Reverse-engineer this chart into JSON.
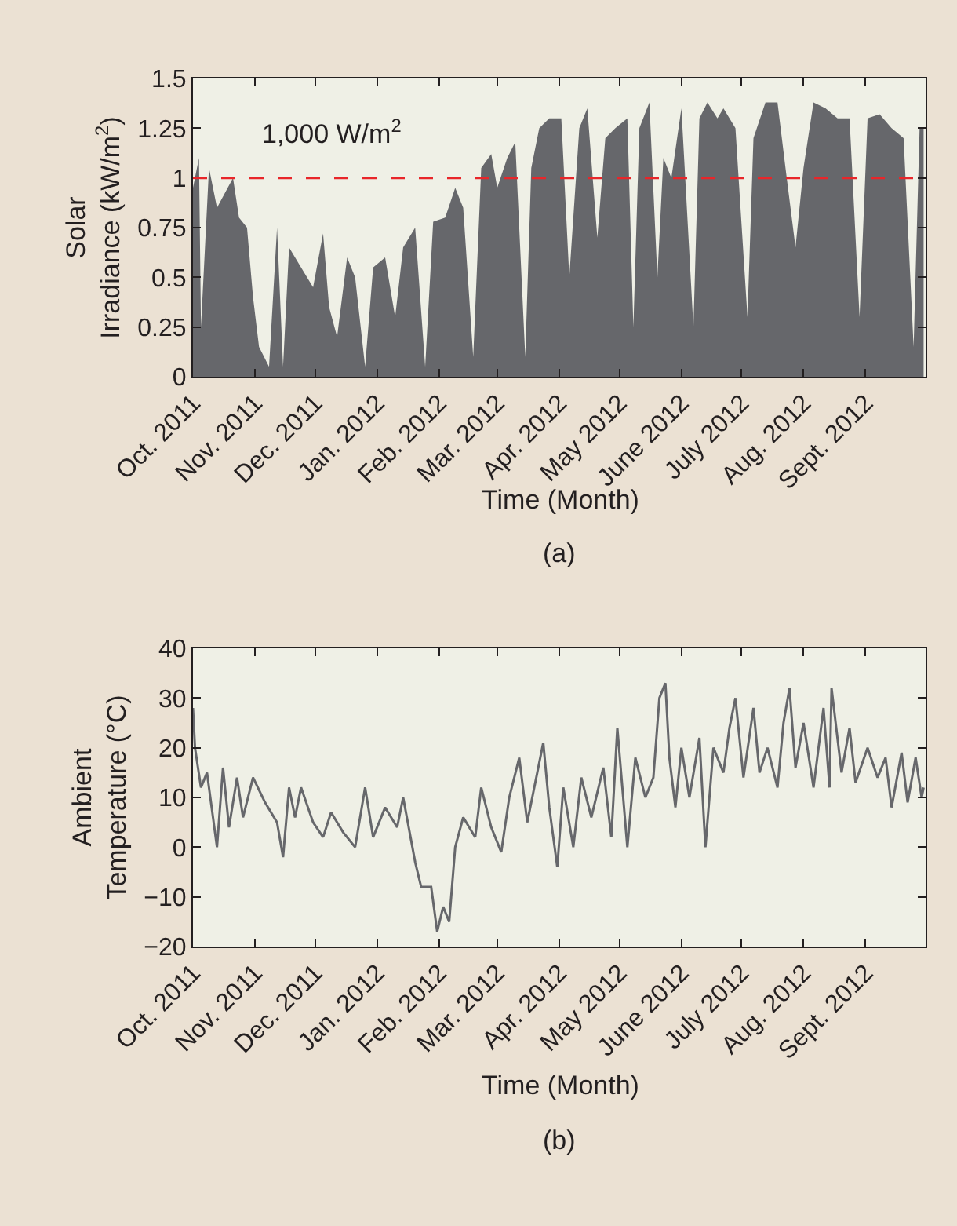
{
  "chart_data": [
    {
      "type": "area",
      "ylabel": "Solar\nIrradiance (kW/m$^{2}$)",
      "xlabel": "Time (Month)",
      "annotations": [
        "(a)"
      ],
      "color": "#66676b",
      "x": [
        "2011-10-01",
        "2011-10-04",
        "2011-10-05",
        "2011-10-09",
        "2011-10-13",
        "2011-10-21",
        "2011-10-24",
        "2011-10-28",
        "2011-10-31",
        "2011-11-03",
        "2011-11-08",
        "2011-11-12",
        "2011-11-15",
        "2011-11-18",
        "2011-11-24",
        "2011-11-30",
        "2011-12-05",
        "2011-12-08",
        "2011-12-12",
        "2011-12-17",
        "2011-12-21",
        "2011-12-26",
        "2011-12-30",
        "2012-01-05",
        "2012-01-10",
        "2012-01-14",
        "2012-01-20",
        "2012-01-25",
        "2012-01-29",
        "2012-02-04",
        "2012-02-09",
        "2012-02-13",
        "2012-02-18",
        "2012-02-22",
        "2012-02-27",
        "2012-03-01",
        "2012-03-06",
        "2012-03-10",
        "2012-03-15",
        "2012-03-18",
        "2012-03-22",
        "2012-03-27",
        "2012-04-02",
        "2012-04-06",
        "2012-04-11",
        "2012-04-15",
        "2012-04-20",
        "2012-04-24",
        "2012-04-29",
        "2012-05-05",
        "2012-05-08",
        "2012-05-11",
        "2012-05-16",
        "2012-05-20",
        "2012-05-23",
        "2012-05-27",
        "2012-06-01",
        "2012-06-07",
        "2012-06-10",
        "2012-06-14",
        "2012-06-19",
        "2012-06-22",
        "2012-06-28",
        "2012-07-04",
        "2012-07-07",
        "2012-07-13",
        "2012-07-19",
        "2012-07-23",
        "2012-07-28",
        "2012-08-01",
        "2012-08-06",
        "2012-08-12",
        "2012-08-18",
        "2012-08-24",
        "2012-08-29",
        "2012-09-02",
        "2012-09-08",
        "2012-09-14",
        "2012-09-20",
        "2012-09-25",
        "2012-09-28",
        "2012-09-30"
      ],
      "values": [
        0.95,
        1.1,
        0.25,
        1.05,
        0.85,
        1.0,
        0.8,
        0.75,
        0.4,
        0.15,
        0.05,
        0.75,
        0.05,
        0.65,
        0.55,
        0.45,
        0.72,
        0.35,
        0.2,
        0.6,
        0.5,
        0.05,
        0.55,
        0.6,
        0.3,
        0.65,
        0.75,
        0.05,
        0.78,
        0.8,
        0.95,
        0.85,
        0.1,
        1.05,
        1.12,
        0.95,
        1.1,
        1.18,
        0.1,
        1.05,
        1.25,
        1.3,
        1.3,
        0.5,
        1.25,
        1.35,
        0.7,
        1.2,
        1.25,
        1.3,
        0.25,
        1.25,
        1.38,
        0.5,
        1.1,
        1.0,
        1.35,
        0.25,
        1.3,
        1.38,
        1.3,
        1.35,
        1.25,
        0.3,
        1.2,
        1.38,
        1.38,
        1.05,
        0.65,
        1.05,
        1.38,
        1.35,
        1.3,
        1.3,
        0.3,
        1.3,
        1.32,
        1.25,
        1.2,
        0.15,
        1.25,
        1.25
      ],
      "xlim": [
        "2011-10-01",
        "2012-10-01"
      ],
      "xticks": [
        {
          "value": "2011-10-01",
          "label": "Oct. 2011"
        },
        {
          "value": "2011-11-01",
          "label": "Nov. 2011"
        },
        {
          "value": "2011-12-01",
          "label": "Dec. 2011"
        },
        {
          "value": "2012-01-01",
          "label": "Jan. 2012"
        },
        {
          "value": "2012-02-01",
          "label": "Feb. 2012"
        },
        {
          "value": "2012-03-01",
          "label": "Mar. 2012"
        },
        {
          "value": "2012-04-01",
          "label": "Apr. 2012"
        },
        {
          "value": "2012-05-01",
          "label": "May 2012"
        },
        {
          "value": "2012-06-01",
          "label": "June 2012"
        },
        {
          "value": "2012-07-01",
          "label": "July 2012"
        },
        {
          "value": "2012-08-01",
          "label": "Aug. 2012"
        },
        {
          "value": "2012-09-01",
          "label": "Sept. 2012"
        }
      ],
      "ylim": [
        0,
        1.5
      ],
      "yticks": [
        0,
        0.25,
        0.5,
        0.75,
        1,
        1.25,
        1.5
      ],
      "ref_lines": [
        {
          "axis": "y",
          "value": 1,
          "label": "1,000 W/m$^{2}$",
          "color": "#e8262a",
          "line_style": "dashed"
        }
      ]
    },
    {
      "type": "line",
      "ylabel": "Ambient\nTemperature (°C)",
      "xlabel": "Time (Month)",
      "annotations": [
        "(b)"
      ],
      "color": "#66676b",
      "x": [
        "2011-10-01",
        "2011-10-02",
        "2011-10-05",
        "2011-10-08",
        "2011-10-13",
        "2011-10-16",
        "2011-10-19",
        "2011-10-23",
        "2011-10-26",
        "2011-10-31",
        "2011-11-06",
        "2011-11-12",
        "2011-11-15",
        "2011-11-18",
        "2011-11-21",
        "2011-11-24",
        "2011-11-30",
        "2011-12-05",
        "2011-12-09",
        "2011-12-15",
        "2011-12-21",
        "2011-12-26",
        "2011-12-30",
        "2012-01-05",
        "2012-01-11",
        "2012-01-14",
        "2012-01-20",
        "2012-01-23",
        "2012-01-28",
        "2012-01-31",
        "2012-02-03",
        "2012-02-06",
        "2012-02-09",
        "2012-02-13",
        "2012-02-19",
        "2012-02-22",
        "2012-02-27",
        "2012-03-03",
        "2012-03-07",
        "2012-03-12",
        "2012-03-16",
        "2012-03-21",
        "2012-03-24",
        "2012-03-27",
        "2012-03-31",
        "2012-04-03",
        "2012-04-08",
        "2012-04-12",
        "2012-04-17",
        "2012-04-23",
        "2012-04-27",
        "2012-04-30",
        "2012-05-05",
        "2012-05-09",
        "2012-05-14",
        "2012-05-18",
        "2012-05-21",
        "2012-05-24",
        "2012-05-26",
        "2012-05-29",
        "2012-06-01",
        "2012-06-05",
        "2012-06-10",
        "2012-06-13",
        "2012-06-17",
        "2012-06-22",
        "2012-06-25",
        "2012-06-28",
        "2012-07-02",
        "2012-07-07",
        "2012-07-10",
        "2012-07-14",
        "2012-07-19",
        "2012-07-22",
        "2012-07-25",
        "2012-07-28",
        "2012-08-01",
        "2012-08-06",
        "2012-08-11",
        "2012-08-14",
        "2012-08-15",
        "2012-08-20",
        "2012-08-24",
        "2012-08-27",
        "2012-09-02",
        "2012-09-07",
        "2012-09-11",
        "2012-09-14",
        "2012-09-19",
        "2012-09-22",
        "2012-09-26",
        "2012-09-29",
        "2012-09-30"
      ],
      "values": [
        28,
        20,
        12,
        15,
        0,
        16,
        4,
        14,
        6,
        14,
        9,
        5,
        -2,
        12,
        6,
        12,
        5,
        2,
        7,
        3,
        0,
        12,
        2,
        8,
        4,
        10,
        -3,
        -8,
        -8,
        -17,
        -12,
        -15,
        0,
        6,
        2,
        12,
        4,
        -1,
        10,
        18,
        5,
        15,
        21,
        8,
        -4,
        12,
        0,
        14,
        6,
        16,
        2,
        24,
        0,
        18,
        10,
        14,
        30,
        33,
        18,
        8,
        20,
        10,
        22,
        0,
        20,
        15,
        24,
        30,
        14,
        28,
        15,
        20,
        12,
        25,
        32,
        16,
        25,
        12,
        28,
        12,
        32,
        15,
        24,
        13,
        20,
        14,
        18,
        8,
        19,
        9,
        18,
        10,
        12
      ],
      "xlim": [
        "2011-10-01",
        "2012-10-01"
      ],
      "xticks": [
        {
          "value": "2011-10-01",
          "label": "Oct. 2011"
        },
        {
          "value": "2011-11-01",
          "label": "Nov. 2011"
        },
        {
          "value": "2011-12-01",
          "label": "Dec. 2011"
        },
        {
          "value": "2012-01-01",
          "label": "Jan. 2012"
        },
        {
          "value": "2012-02-01",
          "label": "Feb. 2012"
        },
        {
          "value": "2012-03-01",
          "label": "Mar. 2012"
        },
        {
          "value": "2012-04-01",
          "label": "Apr. 2012"
        },
        {
          "value": "2012-05-01",
          "label": "May 2012"
        },
        {
          "value": "2012-06-01",
          "label": "June 2012"
        },
        {
          "value": "2012-07-01",
          "label": "July 2012"
        },
        {
          "value": "2012-08-01",
          "label": "Aug. 2012"
        },
        {
          "value": "2012-09-01",
          "label": "Sept. 2012"
        }
      ],
      "ylim": [
        -20,
        40
      ],
      "yticks": [
        {
          "value": -20,
          "label": "−20"
        },
        {
          "value": -10,
          "label": "−10"
        },
        0,
        10,
        20,
        30,
        40
      ]
    }
  ]
}
